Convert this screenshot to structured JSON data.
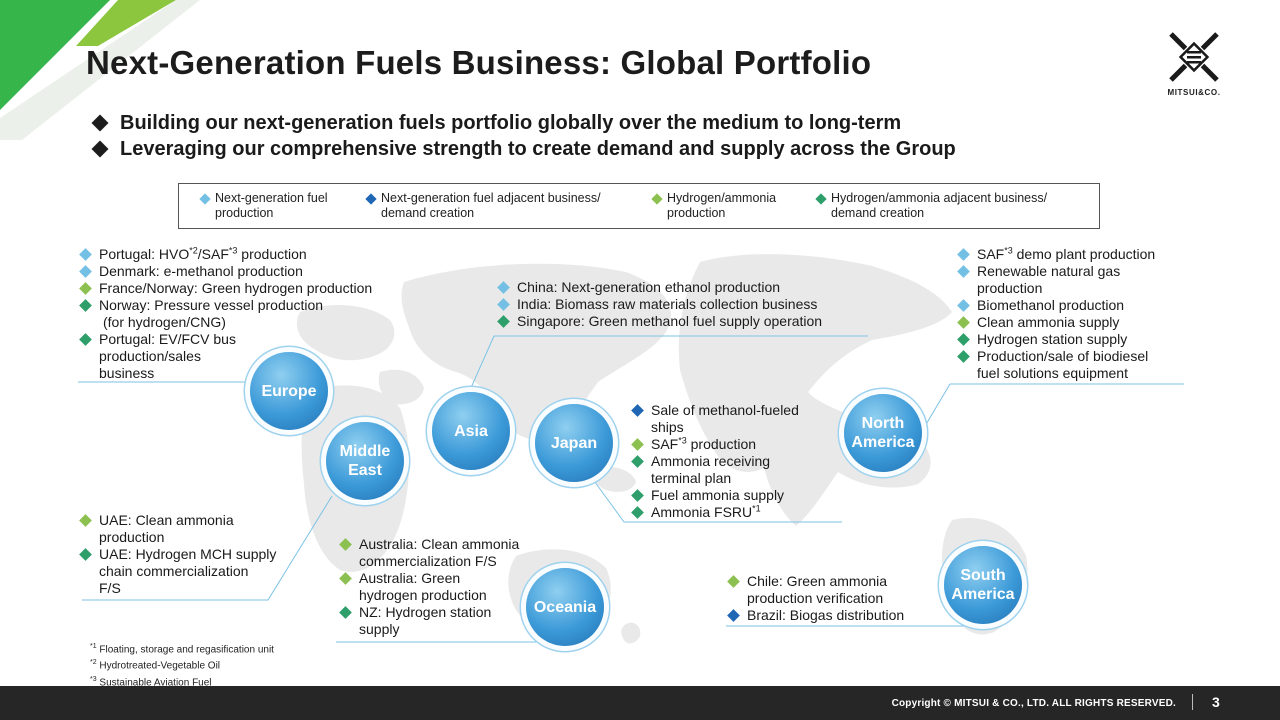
{
  "title": "Next-Generation Fuels Business: Global Portfolio",
  "logo": {
    "text": "MITSUI&CO."
  },
  "bullets": [
    "Building our next-generation fuels portfolio globally over the medium to long-term",
    "Leveraging our comprehensive strength to create demand and supply across the Group"
  ],
  "colors": {
    "next_gen_fuel_production": "#74c0e4",
    "next_gen_fuel_adjacent": "#1f66b5",
    "hydrogen_ammonia_production": "#8cc152",
    "hydrogen_ammonia_adjacent": "#2e9e6a"
  },
  "legend": [
    {
      "type": "nf",
      "line1": "Next-generation fuel",
      "line2": "production"
    },
    {
      "type": "na",
      "line1": "Next-generation fuel adjacent business/",
      "line2": "demand creation"
    },
    {
      "type": "hp",
      "line1": "Hydrogen/ammonia",
      "line2": "production"
    },
    {
      "type": "ha",
      "line1": "Hydrogen/ammonia adjacent business/",
      "line2": "demand creation"
    }
  ],
  "regions": {
    "europe": "Europe",
    "middle_east_1": "Middle",
    "middle_east_2": "East",
    "asia": "Asia",
    "japan": "Japan",
    "north_america_1": "North",
    "north_america_2": "America",
    "south_america_1": "South",
    "south_america_2": "America",
    "oceania": "Oceania"
  },
  "europe": {
    "i1a": "Portugal: HVO",
    "i1s1": "*2",
    "i1b": "/SAF",
    "i1s2": "*3",
    "i1c": " production",
    "i2": "Denmark: e-methanol production",
    "i3": "France/Norway: Green hydrogen production",
    "i4a": "Norway: Pressure vessel production",
    "i4b": "(for hydrogen/CNG)",
    "i5a": "Portugal: EV/FCV bus",
    "i5b": "production/sales",
    "i5c": "business"
  },
  "middle_east": {
    "i1a": "UAE: Clean ammonia",
    "i1b": "production",
    "i2a": "UAE: Hydrogen MCH supply",
    "i2b": "chain commercialization",
    "i2c": "F/S"
  },
  "asia": {
    "i1": "China: Next-generation ethanol production",
    "i2": "India: Biomass raw materials collection business",
    "i3": "Singapore: Green methanol fuel supply operation"
  },
  "japan": {
    "i1a": "Sale of methanol-fueled",
    "i1b": "ships",
    "i2a": "SAF",
    "i2s": "*3",
    "i2b": " production",
    "i3a": "Ammonia receiving",
    "i3b": "terminal plan",
    "i4": "Fuel ammonia supply",
    "i5a": "Ammonia FSRU",
    "i5s": "*1"
  },
  "oceania": {
    "i1a": "Australia: Clean ammonia",
    "i1b": "commercialization F/S",
    "i2a": "Australia: Green",
    "i2b": "hydrogen production",
    "i3a": "NZ: Hydrogen station",
    "i3b": "supply"
  },
  "north_america": {
    "i1a": "SAF",
    "i1s": "*3",
    "i1b": " demo plant production",
    "i2a": "Renewable natural gas",
    "i2b": "production",
    "i3": "Biomethanol production",
    "i4": "Clean ammonia supply",
    "i5": "Hydrogen station supply",
    "i6a": "Production/sale of biodiesel",
    "i6b": "fuel solutions equipment"
  },
  "south_america": {
    "i1a": "Chile: Green ammonia",
    "i1b": "production verification",
    "i2": "Brazil: Biogas distribution"
  },
  "footnotes": {
    "n1s": "*1",
    "n1": " Floating, storage and regasification unit",
    "n2s": "*2",
    "n2": " Hydrotreated-Vegetable Oil",
    "n3s": "*3",
    "n3": " Sustainable Aviation Fuel"
  },
  "footer": {
    "copyright": "Copyright © MITSUI & CO., LTD. ALL RIGHTS RESERVED.",
    "page": "3"
  }
}
